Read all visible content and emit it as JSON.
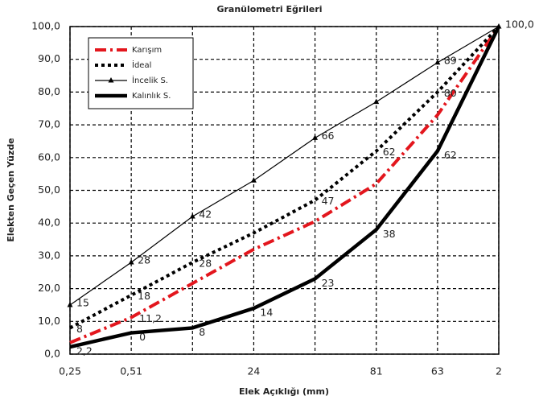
{
  "chart_data": {
    "type": "line",
    "title": "Granülometri Eğrileri",
    "x_label": "Elek Açıklığı (mm)",
    "y_label": "Elekten Geçen Yüzde",
    "categories": [
      "0,25",
      "0,51",
      null,
      "24",
      null,
      "81",
      "63",
      "2"
    ],
    "ylim": [
      0,
      100
    ],
    "yticks": [
      {
        "value": 0,
        "label": "0,0"
      },
      {
        "value": 10,
        "label": "10,0"
      },
      {
        "value": 20,
        "label": "20,0"
      },
      {
        "value": 30,
        "label": "30,0"
      },
      {
        "value": 40,
        "label": "40,0"
      },
      {
        "value": 50,
        "label": "50,0"
      },
      {
        "value": 60,
        "label": "60,0"
      },
      {
        "value": 70,
        "label": "70,0"
      },
      {
        "value": 80,
        "label": "80,0"
      },
      {
        "value": 90,
        "label": "90,0"
      },
      {
        "value": 100,
        "label": "100,0"
      }
    ],
    "grid": true,
    "legend": "upper left",
    "series": [
      {
        "name": "Karışım",
        "color": "#e3161d",
        "values": [
          3.5,
          11.2,
          21.6,
          32,
          40.5,
          52,
          73,
          100
        ],
        "value_labels": [
          null,
          "11,2",
          null,
          null,
          null,
          null,
          null,
          null
        ]
      },
      {
        "name": "İdeal",
        "color": "#000000",
        "values": [
          8,
          18,
          28,
          37,
          47,
          62,
          80,
          100
        ],
        "value_labels": [
          "8",
          "18",
          "28",
          null,
          "47",
          "62",
          "80",
          null
        ]
      },
      {
        "name": "İncelik S.",
        "color": "#000000",
        "values": [
          15,
          28,
          42,
          53,
          66,
          77,
          89,
          100
        ],
        "value_labels": [
          "15",
          "28",
          "42",
          null,
          "66",
          null,
          "89",
          "100,0"
        ]
      },
      {
        "name": "Kalınlık S.",
        "color": "#000000",
        "values": [
          2.2,
          6.5,
          8,
          14,
          23,
          38,
          62,
          100
        ],
        "value_labels": [
          "2,2",
          null,
          "8",
          "14",
          "23",
          "38",
          "62",
          null
        ]
      }
    ],
    "annotations": [
      "0"
    ]
  }
}
